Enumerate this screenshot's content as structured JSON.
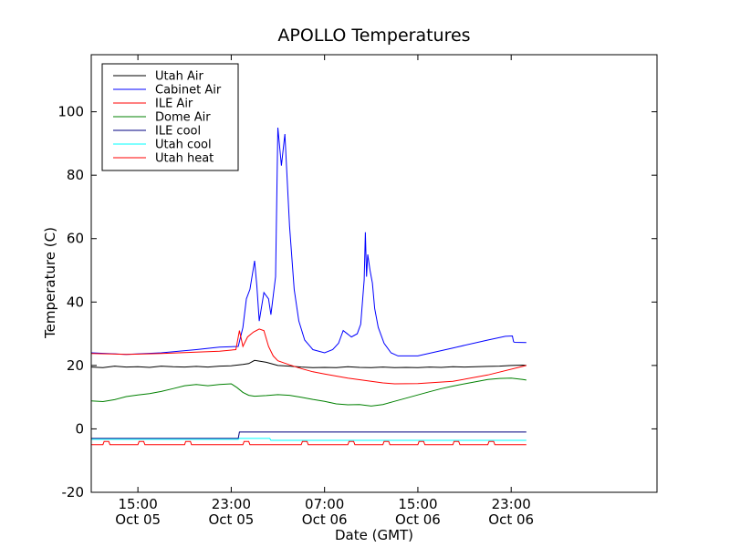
{
  "chart_data": {
    "type": "line",
    "title": "APOLLO Temperatures",
    "xlabel": "Date (GMT)",
    "ylabel": "Temperature (C)",
    "xlim": [
      11,
      59.5
    ],
    "ylim": [
      -20,
      118
    ],
    "grid": false,
    "legend_position": "top-left",
    "x_unit": "hours since 2009-10-05 00:00 GMT (approx.)",
    "y_ticks": [
      -20,
      0,
      20,
      40,
      60,
      80,
      100
    ],
    "x_ticks": [
      {
        "value": 15,
        "line1": "15:00",
        "line2": "Oct 05"
      },
      {
        "value": 23,
        "line1": "23:00",
        "line2": "Oct 05"
      },
      {
        "value": 31,
        "line1": "07:00",
        "line2": "Oct 06"
      },
      {
        "value": 39,
        "line1": "15:00",
        "line2": "Oct 06"
      },
      {
        "value": 47,
        "line1": "23:00",
        "line2": "Oct 06"
      }
    ],
    "series": [
      {
        "name": "Utah Air",
        "color": "#000000",
        "x": [
          11,
          12,
          13,
          14,
          15,
          16,
          17,
          18,
          19,
          20,
          21,
          22,
          23,
          24,
          24.5,
          25,
          26,
          27,
          28,
          29,
          30,
          31,
          32,
          33,
          34,
          35,
          36,
          37,
          38,
          39,
          40,
          41,
          42,
          43,
          44,
          45,
          46,
          47,
          48,
          48.3
        ],
        "y": [
          19.5,
          19.3,
          19.8,
          19.5,
          19.6,
          19.4,
          19.8,
          19.6,
          19.5,
          19.7,
          19.5,
          19.8,
          19.9,
          20.3,
          20.6,
          21.6,
          21.0,
          20.0,
          19.8,
          19.5,
          19.3,
          19.4,
          19.3,
          19.6,
          19.4,
          19.3,
          19.5,
          19.3,
          19.4,
          19.3,
          19.5,
          19.4,
          19.6,
          19.5,
          19.6,
          19.7,
          19.8,
          20.0,
          20.1,
          20.0
        ]
      },
      {
        "name": "Cabinet Air",
        "color": "#0000ff",
        "x": [
          11,
          14,
          17,
          20,
          22,
          23.6,
          24,
          24.3,
          24.6,
          25.0,
          25.2,
          25.4,
          25.8,
          26.2,
          26.4,
          26.8,
          27.0,
          27.3,
          27.6,
          28.0,
          28.4,
          28.8,
          29.3,
          30,
          31,
          31.7,
          32.2,
          32.6,
          33.3,
          33.8,
          34.1,
          34.4,
          34.5,
          34.6,
          34.7,
          34.9,
          35.1,
          35.3,
          35.6,
          36.1,
          36.7,
          37.3,
          39,
          42,
          45,
          46.5,
          47.1,
          47.2,
          47.3,
          48.3
        ],
        "y": [
          24,
          23.5,
          24,
          25,
          25.8,
          26,
          32,
          41,
          44,
          53,
          45,
          34,
          43,
          41,
          36,
          48,
          95,
          83,
          93,
          64,
          44,
          34,
          28,
          25,
          24,
          25,
          27,
          31,
          29,
          30,
          33,
          47,
          62,
          48,
          55,
          50,
          46,
          38,
          32,
          27,
          24,
          23,
          23,
          25.5,
          28,
          29.2,
          29.3,
          27.5,
          27.3,
          27.2
        ]
      },
      {
        "name": "ILE Air",
        "color": "#ff0000",
        "x": [
          11,
          14,
          17,
          20,
          22,
          23.4,
          23.7,
          24,
          24.4,
          24.9,
          25.4,
          25.8,
          26.2,
          26.6,
          27,
          28,
          29,
          30,
          31,
          33,
          35,
          36,
          37,
          39,
          42,
          45,
          48.3
        ],
        "y": [
          23.8,
          23.5,
          23.8,
          24.2,
          24.5,
          25,
          31,
          26,
          29,
          30.5,
          31.5,
          31,
          26,
          23,
          21.5,
          20.2,
          19,
          18,
          17.3,
          16,
          15,
          14.5,
          14.2,
          14.3,
          15,
          17,
          20
        ]
      },
      {
        "name": "Dome Air",
        "color": "#008000",
        "x": [
          11,
          12,
          13,
          14,
          15,
          16,
          17,
          18,
          19,
          20,
          21,
          22,
          23,
          23.5,
          24,
          24.5,
          25,
          26,
          27,
          28,
          29,
          30,
          31,
          32,
          33,
          34,
          35,
          36,
          37,
          38,
          39,
          40,
          41,
          42,
          43,
          44,
          45,
          46,
          47,
          48,
          48.3
        ],
        "y": [
          8.8,
          8.6,
          9.2,
          10.2,
          10.7,
          11.1,
          11.8,
          12.7,
          13.6,
          14.0,
          13.6,
          14.0,
          14.2,
          13.0,
          11.5,
          10.6,
          10.3,
          10.5,
          10.8,
          10.6,
          10.0,
          9.3,
          8.7,
          7.9,
          7.6,
          7.7,
          7.2,
          7.7,
          8.7,
          9.7,
          10.7,
          11.7,
          12.7,
          13.5,
          14.2,
          14.9,
          15.6,
          15.9,
          16.0,
          15.6,
          15.4
        ]
      },
      {
        "name": "ILE cool",
        "color": "#000080",
        "x": [
          11,
          23.6,
          23.7,
          48.3
        ],
        "y": [
          -3,
          -3,
          -1,
          -1
        ]
      },
      {
        "name": "Utah cool",
        "color": "#00ffff",
        "x": [
          11,
          23.6,
          23.7,
          26.3,
          26.4,
          48.3
        ],
        "y": [
          -3.3,
          -3.3,
          -3,
          -3,
          -3.6,
          -3.6
        ]
      },
      {
        "name": "Utah heat",
        "color": "#ff0000",
        "x": [
          11,
          12,
          12.1,
          12.5,
          12.6,
          15,
          15.1,
          15.5,
          15.6,
          19,
          19.1,
          19.5,
          19.6,
          24,
          24.1,
          24.5,
          24.6,
          29,
          29.1,
          29.5,
          29.6,
          33,
          33.1,
          33.5,
          33.6,
          36,
          36.1,
          36.5,
          36.6,
          39,
          39.1,
          39.5,
          39.6,
          42,
          42.1,
          42.5,
          42.6,
          45,
          45.1,
          45.5,
          45.6,
          48.3
        ],
        "y": [
          -5,
          -5,
          -4,
          -4,
          -5,
          -5,
          -4,
          -4,
          -5,
          -5,
          -4,
          -4,
          -5,
          -5,
          -4,
          -4,
          -5,
          -5,
          -4,
          -4,
          -5,
          -5,
          -4,
          -4,
          -5,
          -5,
          -4,
          -4,
          -5,
          -5,
          -4,
          -4,
          -5,
          -5,
          -4,
          -4,
          -5,
          -5,
          -4,
          -4,
          -5,
          -5
        ]
      }
    ]
  }
}
